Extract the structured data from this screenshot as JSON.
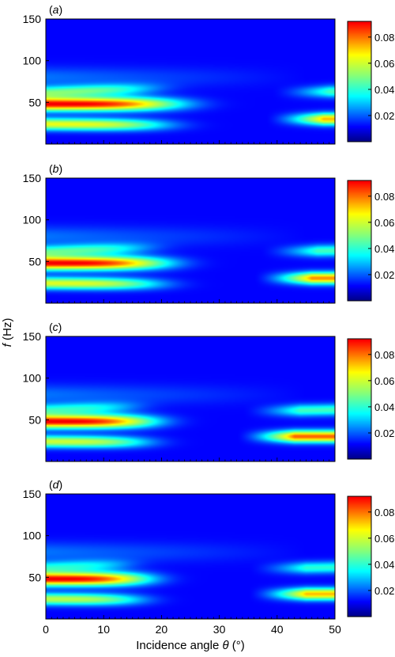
{
  "figure": {
    "ylabel_italic": "f",
    "ylabel_rest": " (Hz)",
    "xlabel_main": "Incidence angle ",
    "xlabel_symbol": "θ",
    "xlabel_unit": " (°)"
  },
  "chart_data": [
    {
      "type": "heatmap",
      "panel_label": "(a)",
      "x_range": [
        0,
        50
      ],
      "y_range": [
        0,
        150
      ],
      "x_ticks": [
        0,
        10,
        20,
        30,
        40,
        50
      ],
      "y_ticks": [
        50,
        100,
        150
      ],
      "colorbar_range": [
        0,
        0.092
      ],
      "colorbar_ticks": [
        0.02,
        0.04,
        0.06,
        0.08
      ],
      "bands": [
        {
          "center_hz": 48,
          "peak": 0.092,
          "theta_extent": 22,
          "slope": 0.0,
          "width_hz": 8
        },
        {
          "center_hz": 24,
          "peak": 0.06,
          "theta_extent": 20,
          "slope": -0.05,
          "width_hz": 7
        },
        {
          "center_hz": 62,
          "peak": 0.04,
          "theta_extent": 18,
          "slope": 0.25,
          "width_hz": 7
        },
        {
          "center_hz": 30,
          "peak": 0.07,
          "theta_start": 38,
          "slope": 0.0,
          "width_hz": 7
        },
        {
          "center_hz": 58,
          "peak": 0.035,
          "theta_start": 39,
          "slope": 0.1,
          "width_hz": 7
        }
      ]
    },
    {
      "type": "heatmap",
      "panel_label": "(b)",
      "x_range": [
        0,
        50
      ],
      "y_range": [
        0,
        150
      ],
      "x_ticks": [
        0,
        10,
        20,
        30,
        40,
        50
      ],
      "y_ticks": [
        50,
        100,
        150
      ],
      "colorbar_range": [
        0,
        0.092
      ],
      "colorbar_ticks": [
        0.02,
        0.04,
        0.06,
        0.08
      ],
      "bands": [
        {
          "center_hz": 48,
          "peak": 0.092,
          "theta_extent": 20,
          "slope": 0.0,
          "width_hz": 8
        },
        {
          "center_hz": 24,
          "peak": 0.058,
          "theta_extent": 19,
          "slope": -0.05,
          "width_hz": 7
        },
        {
          "center_hz": 62,
          "peak": 0.036,
          "theta_extent": 17,
          "slope": 0.25,
          "width_hz": 7
        },
        {
          "center_hz": 30,
          "peak": 0.075,
          "theta_start": 36,
          "slope": 0.0,
          "width_hz": 7
        },
        {
          "center_hz": 58,
          "peak": 0.035,
          "theta_start": 37,
          "slope": 0.1,
          "width_hz": 7
        }
      ]
    },
    {
      "type": "heatmap",
      "panel_label": "(c)",
      "x_range": [
        0,
        50
      ],
      "y_range": [
        0,
        150
      ],
      "x_ticks": [
        0,
        10,
        20,
        30,
        40,
        50
      ],
      "y_ticks": [
        50,
        100,
        150
      ],
      "colorbar_range": [
        0,
        0.092
      ],
      "colorbar_ticks": [
        0.02,
        0.04,
        0.06,
        0.08
      ],
      "bands": [
        {
          "center_hz": 48,
          "peak": 0.092,
          "theta_extent": 18,
          "slope": 0.0,
          "width_hz": 8
        },
        {
          "center_hz": 24,
          "peak": 0.055,
          "theta_extent": 17,
          "slope": -0.05,
          "width_hz": 7
        },
        {
          "center_hz": 62,
          "peak": 0.03,
          "theta_extent": 15,
          "slope": 0.25,
          "width_hz": 7
        },
        {
          "center_hz": 30,
          "peak": 0.08,
          "theta_start": 33,
          "slope": 0.0,
          "width_hz": 7
        },
        {
          "center_hz": 56,
          "peak": 0.035,
          "theta_start": 34,
          "slope": 0.12,
          "width_hz": 7
        }
      ]
    },
    {
      "type": "heatmap",
      "panel_label": "(d)",
      "x_range": [
        0,
        50
      ],
      "y_range": [
        0,
        150
      ],
      "x_ticks": [
        0,
        10,
        20,
        30,
        40,
        50
      ],
      "y_ticks": [
        50,
        100,
        150
      ],
      "colorbar_range": [
        0,
        0.092
      ],
      "colorbar_ticks": [
        0.02,
        0.04,
        0.06,
        0.08
      ],
      "bands": [
        {
          "center_hz": 48,
          "peak": 0.092,
          "theta_extent": 17,
          "slope": 0.0,
          "width_hz": 8
        },
        {
          "center_hz": 24,
          "peak": 0.052,
          "theta_extent": 16,
          "slope": -0.05,
          "width_hz": 7
        },
        {
          "center_hz": 62,
          "peak": 0.028,
          "theta_extent": 14,
          "slope": 0.25,
          "width_hz": 7
        },
        {
          "center_hz": 30,
          "peak": 0.07,
          "theta_start": 35,
          "slope": 0.0,
          "width_hz": 7
        },
        {
          "center_hz": 56,
          "peak": 0.032,
          "theta_start": 35,
          "slope": 0.12,
          "width_hz": 7
        }
      ]
    }
  ]
}
